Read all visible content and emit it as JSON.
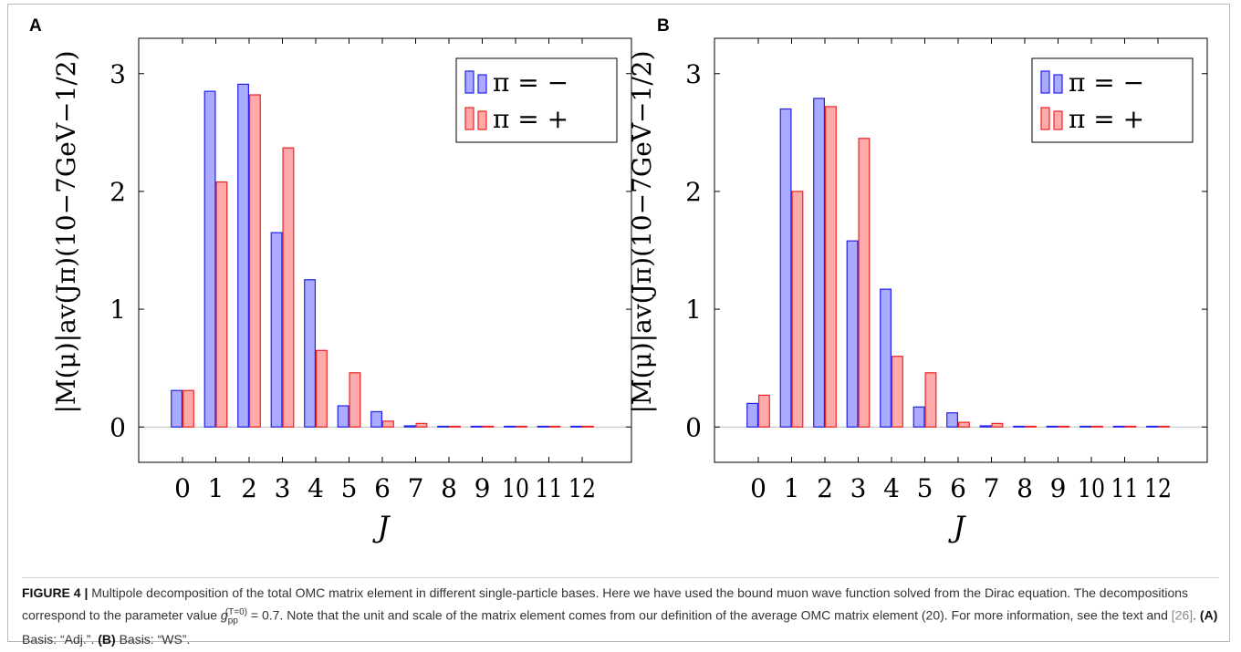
{
  "figure": {
    "caption_label": "FIGURE 4 |",
    "caption_text_1": " Multipole decomposition of the total OMC matrix element in different single-particle bases. Here we have used the bound muon wave function solved from the Dirac equation. The decompositions correspond to the parameter value ",
    "caption_g": "g",
    "caption_g_sub": "pp",
    "caption_g_sup": "(T=0)",
    "caption_g_value": " = 0.7",
    "caption_text_2": ". Note that the unit and scale of the matrix element comes from our definition of the average OMC matrix element (20). For more information, see the text and ",
    "caption_ref": "[26]",
    "caption_text_3": ". ",
    "caption_a_label": "(A)",
    "caption_a_text": " Basis: “Adj.”. ",
    "caption_b_label": "(B)",
    "caption_b_text": " Basis: “WS”."
  },
  "colors": {
    "minus_fill": "#aaaaff",
    "minus_stroke": "#2222ee",
    "plus_fill": "#ffaaaa",
    "plus_stroke": "#ee2222"
  },
  "chart_data": [
    {
      "panel_label": "A",
      "type": "bar",
      "categories": [
        "0",
        "1",
        "2",
        "3",
        "4",
        "5",
        "6",
        "7",
        "8",
        "9",
        "10",
        "11",
        "12"
      ],
      "series": [
        {
          "name": "π = −",
          "values": [
            0.31,
            2.85,
            2.91,
            1.65,
            1.25,
            0.18,
            0.13,
            0.01,
            0.005,
            0.004,
            0.003,
            0.002,
            0.001
          ]
        },
        {
          "name": "π = +",
          "values": [
            0.31,
            2.08,
            2.82,
            2.37,
            0.65,
            0.46,
            0.05,
            0.03,
            0.005,
            0.004,
            0.003,
            0.002,
            0.001
          ]
        }
      ],
      "xlabel": "J",
      "ylabel": "|M(μ)|av(Jπ)(10−7GeV−1/2)",
      "yticks": [
        "0",
        "1",
        "2",
        "3"
      ],
      "ylim": [
        -0.3,
        3.3
      ],
      "legend": "top-right",
      "grid": false
    },
    {
      "panel_label": "B",
      "type": "bar",
      "categories": [
        "0",
        "1",
        "2",
        "3",
        "4",
        "5",
        "6",
        "7",
        "8",
        "9",
        "10",
        "11",
        "12"
      ],
      "series": [
        {
          "name": "π = −",
          "values": [
            0.2,
            2.7,
            2.79,
            1.58,
            1.17,
            0.17,
            0.12,
            0.01,
            0.005,
            0.004,
            0.003,
            0.002,
            0.001
          ]
        },
        {
          "name": "π = +",
          "values": [
            0.27,
            2.0,
            2.72,
            2.45,
            0.6,
            0.46,
            0.04,
            0.03,
            0.005,
            0.004,
            0.003,
            0.002,
            0.001
          ]
        }
      ],
      "xlabel": "J",
      "ylabel": "|M(μ)|av(Jπ)(10−7GeV−1/2)",
      "yticks": [
        "0",
        "1",
        "2",
        "3"
      ],
      "ylim": [
        -0.3,
        3.3
      ],
      "legend": "top-right",
      "grid": false
    }
  ]
}
